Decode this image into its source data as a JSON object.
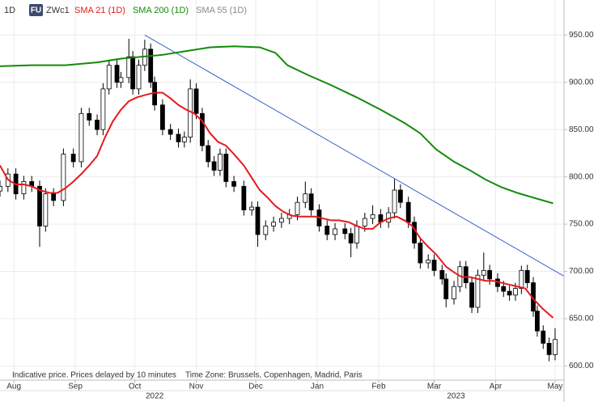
{
  "chart_data": {
    "type": "candlestick",
    "interval": "1D",
    "symbol_badge": "FU",
    "symbol": "ZWc1",
    "note": "Indicative price. Prices delayed by 10 minutes",
    "timezone": "Time Zone: Brussels, Copenhagen, Madrid, Paris",
    "ylim": [
      585,
      987
    ],
    "yticks": [
      {
        "value": 600,
        "label": "600.00"
      },
      {
        "value": 650,
        "label": "650.00"
      },
      {
        "value": 700,
        "label": "700.00"
      },
      {
        "value": 750,
        "label": "750.00"
      },
      {
        "value": 800,
        "label": "800.00"
      },
      {
        "value": 850,
        "label": "850.00"
      },
      {
        "value": 900,
        "label": "900.00"
      },
      {
        "value": 950,
        "label": "950.00"
      }
    ],
    "xlim": [
      -7,
      277.5
    ],
    "xticks": [
      {
        "value": 0,
        "label": "Aug"
      },
      {
        "value": 31,
        "label": "Sep"
      },
      {
        "value": 61,
        "label": "Oct"
      },
      {
        "value": 92,
        "label": "Nov"
      },
      {
        "value": 122,
        "label": "Dec"
      },
      {
        "value": 153,
        "label": "Jan"
      },
      {
        "value": 184,
        "label": "Feb"
      },
      {
        "value": 212,
        "label": "Mar"
      },
      {
        "value": 243,
        "label": "Apr"
      },
      {
        "value": 273,
        "label": "May"
      }
    ],
    "years": [
      {
        "value": 71,
        "label": "2022"
      },
      {
        "value": 223,
        "label": "2023"
      }
    ],
    "grid": true,
    "candle_color": "#000000",
    "candles": [
      [
        -7,
        785,
        796,
        779,
        790
      ],
      [
        -3,
        790,
        809,
        784,
        803
      ],
      [
        1,
        803,
        809,
        776,
        782
      ],
      [
        5,
        782,
        801,
        776,
        795
      ],
      [
        9,
        795,
        801,
        784,
        790
      ],
      [
        13,
        790,
        796,
        726,
        748
      ],
      [
        16,
        748,
        788,
        742,
        782
      ],
      [
        20,
        782,
        788,
        769,
        775
      ],
      [
        25,
        775,
        830,
        769,
        824
      ],
      [
        30,
        824,
        830,
        810,
        816
      ],
      [
        34,
        816,
        873,
        810,
        867
      ],
      [
        38,
        867,
        873,
        854,
        860
      ],
      [
        42,
        860,
        866,
        844,
        850
      ],
      [
        45,
        850,
        899,
        844,
        893
      ],
      [
        48,
        893,
        924,
        887,
        918
      ],
      [
        52,
        918,
        924,
        894,
        900
      ],
      [
        54,
        900,
        911,
        894,
        905
      ],
      [
        58,
        905,
        946,
        899,
        927
      ],
      [
        60,
        927,
        933,
        887,
        893
      ],
      [
        63,
        893,
        924,
        887,
        918
      ],
      [
        66,
        918,
        945,
        912,
        935
      ],
      [
        69,
        935,
        941,
        894,
        900
      ],
      [
        71,
        900,
        906,
        870,
        876
      ],
      [
        75,
        876,
        882,
        844,
        850
      ],
      [
        79,
        850,
        856,
        839,
        845
      ],
      [
        83,
        845,
        851,
        831,
        837
      ],
      [
        86,
        837,
        848,
        831,
        842
      ],
      [
        89,
        842,
        903,
        836,
        893
      ],
      [
        92,
        893,
        899,
        861,
        867
      ],
      [
        95,
        867,
        873,
        827,
        833
      ],
      [
        98,
        833,
        839,
        810,
        816
      ],
      [
        101,
        816,
        822,
        801,
        807
      ],
      [
        104,
        807,
        830,
        801,
        824
      ],
      [
        107,
        824,
        830,
        789,
        795
      ],
      [
        111,
        795,
        801,
        784,
        790
      ],
      [
        116,
        790,
        796,
        759,
        765
      ],
      [
        120,
        765,
        774,
        759,
        768
      ],
      [
        123,
        768,
        774,
        726,
        739
      ],
      [
        127,
        739,
        754,
        733,
        748
      ],
      [
        131,
        748,
        758,
        742,
        752
      ],
      [
        135,
        752,
        762,
        746,
        756
      ],
      [
        139,
        756,
        766,
        750,
        760
      ],
      [
        143,
        760,
        779,
        754,
        773
      ],
      [
        147,
        773,
        795,
        767,
        782
      ],
      [
        150,
        782,
        788,
        759,
        765
      ],
      [
        154,
        765,
        771,
        742,
        748
      ],
      [
        158,
        748,
        754,
        733,
        739
      ],
      [
        162,
        739,
        751,
        733,
        745
      ],
      [
        167,
        745,
        751,
        734,
        740
      ],
      [
        170,
        740,
        746,
        715,
        730
      ],
      [
        173,
        730,
        754,
        724,
        748
      ],
      [
        177,
        748,
        762,
        742,
        756
      ],
      [
        181,
        756,
        770,
        750,
        760
      ],
      [
        185,
        760,
        766,
        746,
        752
      ],
      [
        189,
        752,
        768,
        746,
        762
      ],
      [
        192,
        762,
        798,
        756,
        786
      ],
      [
        195,
        786,
        792,
        767,
        773
      ],
      [
        199,
        773,
        779,
        746,
        752
      ],
      [
        202,
        752,
        758,
        724,
        730
      ],
      [
        205,
        730,
        736,
        703,
        709
      ],
      [
        209,
        709,
        718,
        703,
        712
      ],
      [
        212,
        712,
        718,
        695,
        701
      ],
      [
        216,
        701,
        707,
        686,
        692
      ],
      [
        218,
        692,
        698,
        662,
        671
      ],
      [
        222,
        671,
        690,
        665,
        684
      ],
      [
        225,
        684,
        711,
        678,
        705
      ],
      [
        228,
        705,
        711,
        682,
        688
      ],
      [
        231,
        688,
        694,
        656,
        662
      ],
      [
        234,
        662,
        702,
        656,
        696
      ],
      [
        237,
        696,
        720,
        690,
        701
      ],
      [
        240,
        701,
        707,
        686,
        692
      ],
      [
        244,
        692,
        698,
        678,
        684
      ],
      [
        247,
        684,
        690,
        673,
        679
      ],
      [
        250,
        679,
        685,
        669,
        675
      ],
      [
        253,
        675,
        688,
        669,
        682
      ],
      [
        256,
        682,
        706,
        676,
        701
      ],
      [
        259,
        701,
        707,
        682,
        688
      ],
      [
        262,
        688,
        694,
        652,
        658
      ],
      [
        264,
        658,
        664,
        631,
        637
      ],
      [
        267,
        637,
        643,
        618,
        624
      ],
      [
        270,
        624,
        630,
        605,
        612
      ],
      [
        273,
        612,
        640,
        606,
        628
      ]
    ],
    "series": [
      {
        "name": "SMA 21 (1D)",
        "color": "#e8191c",
        "x": [
          -7,
          -3,
          1,
          5,
          9,
          13,
          18,
          22,
          26,
          30,
          34,
          38,
          42,
          46,
          50,
          54,
          58,
          62,
          67,
          71,
          75,
          79,
          83,
          87,
          91,
          95,
          99,
          103,
          107,
          111,
          116,
          120,
          124,
          128,
          132,
          136,
          140,
          144,
          148,
          152,
          156,
          160,
          164,
          169,
          173,
          177,
          181,
          185,
          189,
          193,
          197,
          201,
          205,
          209,
          213,
          218,
          222,
          226,
          230,
          234,
          238,
          242,
          246,
          250,
          254,
          258,
          262,
          267,
          272
        ],
        "values": [
          812,
          797,
          792,
          792,
          790,
          786,
          783,
          783,
          788,
          795,
          803,
          812,
          822,
          842,
          859,
          871,
          880,
          884,
          887,
          889,
          889,
          883,
          876,
          871,
          867,
          859,
          846,
          837,
          833,
          824,
          812,
          799,
          786,
          778,
          769,
          763,
          759,
          758,
          758,
          758,
          756,
          754,
          754,
          752,
          748,
          745,
          745,
          752,
          756,
          758,
          754,
          748,
          735,
          726,
          718,
          705,
          699,
          694,
          694,
          692,
          690,
          690,
          688,
          686,
          684,
          682,
          671,
          660,
          651
        ]
      },
      {
        "name": "SMA 200 (1D)",
        "color": "#138a07",
        "x": [
          -7,
          9,
          26,
          42,
          54,
          75,
          87,
          99,
          111,
          124,
          132,
          138,
          148,
          160,
          173,
          185,
          197,
          205,
          213,
          222,
          230,
          238,
          246,
          254,
          262,
          272
        ],
        "values": [
          917,
          918,
          918,
          921,
          925,
          929,
          933,
          937,
          938,
          937,
          931,
          918,
          908,
          897,
          884,
          871,
          857,
          846,
          829,
          816,
          807,
          797,
          789,
          783,
          778,
          772
        ]
      },
      {
        "name": "SMA 55 (1D)",
        "color": "#8a8a8a",
        "x": [],
        "values": []
      }
    ],
    "trendline": {
      "color": "#3a5fcd",
      "x": [
        66,
        277.5
      ],
      "values": [
        950,
        695
      ]
    }
  }
}
